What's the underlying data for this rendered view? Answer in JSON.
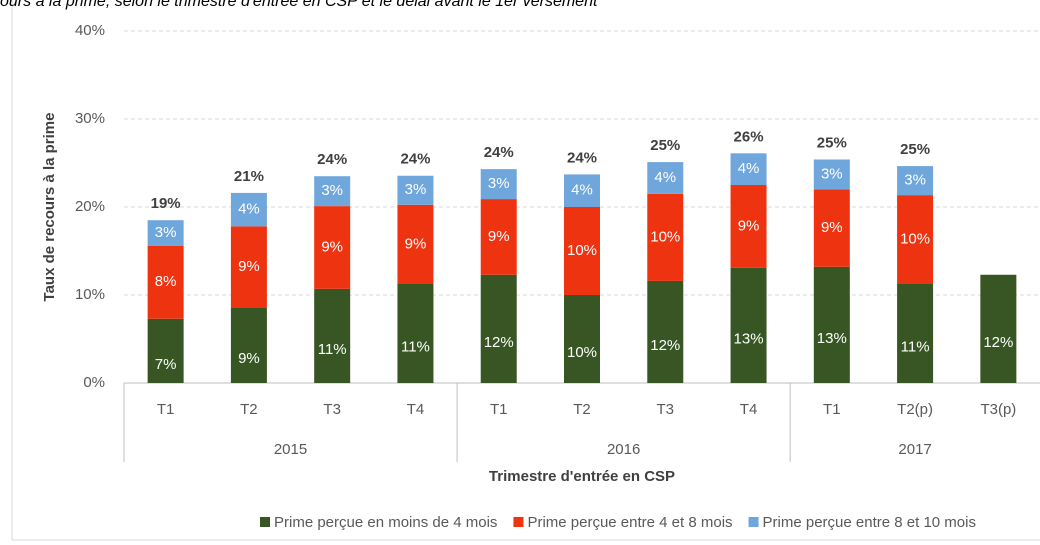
{
  "chart_data": {
    "type": "stacked_bar",
    "title": "ours à la prime, selon le trimestre d'entrée en CSP et le délai avant le 1er versement",
    "y_label": "Taux de recours à la prime",
    "x_label": "Trimestre d'entrée en CSP",
    "groups": [
      {
        "name": "2015",
        "categories": [
          "T1",
          "T2",
          "T3",
          "T4"
        ]
      },
      {
        "name": "2016",
        "categories": [
          "T1",
          "T2",
          "T3",
          "T4"
        ]
      },
      {
        "name": "2017",
        "categories": [
          "T1",
          "T2(p)",
          "T3(p)"
        ]
      }
    ],
    "series": [
      {
        "name": "Prime perçue en moins de 4 mois",
        "color": "#375623",
        "values": [
          7.3,
          8.6,
          10.7,
          11.25,
          12.3,
          10.0,
          11.6,
          13.1,
          13.2,
          11.25,
          12.3
        ],
        "value_labels": [
          "7%",
          "9%",
          "11%",
          "11%",
          "12%",
          "10%",
          "12%",
          "13%",
          "13%",
          "11%",
          "12%"
        ]
      },
      {
        "name": "Prime perçue entre 4 et 8 mois",
        "color": "#ee3311",
        "values": [
          8.3,
          9.2,
          9.4,
          9.0,
          8.6,
          10.0,
          9.9,
          9.4,
          8.8,
          10.1,
          null
        ],
        "value_labels": [
          "8%",
          "9%",
          "9%",
          "9%",
          "9%",
          "10%",
          "10%",
          "9%",
          "9%",
          "10%",
          null
        ]
      },
      {
        "name": "Prime perçue entre 8 et 10 mois",
        "color": "#6fa6dc",
        "values": [
          2.9,
          3.8,
          3.4,
          3.3,
          3.4,
          3.7,
          3.6,
          3.6,
          3.4,
          3.3,
          null
        ],
        "value_labels": [
          "3%",
          "4%",
          "3%",
          "3%",
          "3%",
          "4%",
          "4%",
          "4%",
          "3%",
          "3%",
          null
        ]
      }
    ],
    "total_labels": [
      "19%",
      "21%",
      "24%",
      "24%",
      "24%",
      "24%",
      "25%",
      "26%",
      "25%",
      "25%",
      null
    ],
    "ylim": [
      0,
      40
    ],
    "yticks": [
      {
        "value": 0,
        "label": "0%"
      },
      {
        "value": 10,
        "label": "10%"
      },
      {
        "value": 20,
        "label": "20%"
      },
      {
        "value": 30,
        "label": "30%"
      },
      {
        "value": 40,
        "label": "40%"
      }
    ],
    "grid": true,
    "legend": "bottom"
  }
}
